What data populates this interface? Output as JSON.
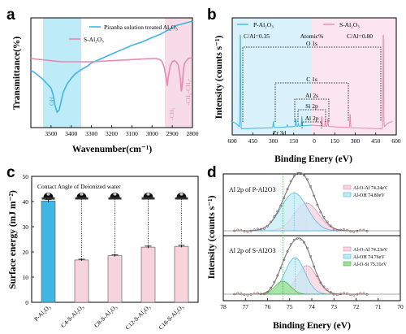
{
  "panels": {
    "a": "a",
    "b": "b",
    "c": "c",
    "d": "d"
  },
  "colors": {
    "blue": "#3fb6e3",
    "pink": "#e58ab0",
    "blue_band": "#bdebf7",
    "pink_band": "#f7dbe6",
    "bar_blue": "#3fb6e3",
    "bar_pink": "#f7d3dd",
    "green": "#9be18f",
    "envelope": "#e4e4e4",
    "points": "#8a5a5a"
  },
  "chart_data": [
    {
      "type": "line",
      "panel": "a",
      "xlabel": "Wavenumber(cm⁻¹)",
      "ylabel": "Transmittance(%)",
      "xlim": [
        3600,
        2800
      ],
      "xticks": [
        "3500",
        "3400",
        "3300",
        "3200",
        "3100",
        "3000",
        "2900",
        "2800"
      ],
      "legend": [
        "Piranha solution treated Al₂O₃",
        "S-Al₂O₃"
      ],
      "annotations": [
        "OH",
        "-CH₃",
        "-CH₂-CH₂-"
      ],
      "series": [
        {
          "name": "Piranha solution treated Al₂O₃",
          "x": [
            3600,
            3580,
            3560,
            3540,
            3520,
            3500,
            3490,
            3480,
            3470,
            3460,
            3450,
            3440,
            3420,
            3400,
            3380,
            3350,
            3320,
            3300,
            3250,
            3200,
            3150,
            3100,
            3050,
            3000,
            2960,
            2940,
            2920,
            2900,
            2880,
            2860,
            2840,
            2820,
            2800
          ],
          "y": [
            0.52,
            0.5,
            0.47,
            0.44,
            0.4,
            0.36,
            0.3,
            0.2,
            0.14,
            0.16,
            0.24,
            0.32,
            0.4,
            0.45,
            0.49,
            0.53,
            0.56,
            0.59,
            0.63,
            0.67,
            0.71,
            0.75,
            0.78,
            0.82,
            0.85,
            0.87,
            0.89,
            0.91,
            0.93,
            0.94,
            0.95,
            0.96,
            0.97
          ]
        },
        {
          "name": "S-Al₂O₃",
          "x": [
            3600,
            3550,
            3500,
            3450,
            3400,
            3350,
            3300,
            3200,
            3100,
            3000,
            2980,
            2960,
            2950,
            2940,
            2930,
            2925,
            2920,
            2910,
            2900,
            2890,
            2880,
            2870,
            2860,
            2855,
            2850,
            2845,
            2840,
            2830,
            2820,
            2800
          ],
          "y": [
            0.63,
            0.62,
            0.61,
            0.6,
            0.6,
            0.6,
            0.6,
            0.61,
            0.62,
            0.63,
            0.63,
            0.62,
            0.6,
            0.55,
            0.45,
            0.38,
            0.46,
            0.56,
            0.6,
            0.61,
            0.6,
            0.57,
            0.45,
            0.33,
            0.4,
            0.52,
            0.58,
            0.61,
            0.63,
            0.64
          ]
        }
      ]
    },
    {
      "type": "line",
      "panel": "b",
      "xlabel": "Binding Enery (eV)",
      "ylabel": "Intensity (counts s⁻¹)",
      "xticks": [
        "600",
        "450",
        "300",
        "150",
        "0",
        "150",
        "300",
        "450",
        "600"
      ],
      "legend": [
        "P-Al₂O₃",
        "S-Al₂O₃"
      ],
      "table": {
        "header": "Atomic%",
        "left": "C/Al=0.35",
        "right": "C/Al=0.80"
      },
      "peak_labels": [
        "O 1s",
        "C 1s",
        "Al 2s",
        "Si 2p",
        "Al 2p",
        "Zr 3d"
      ]
    },
    {
      "type": "bar",
      "panel": "c",
      "title": "Contact Angle of Deionized water",
      "ylabel": "Surface energy (mJ m⁻²)",
      "ylim": [
        0,
        50
      ],
      "yticks": [
        "0",
        "10",
        "20",
        "30",
        "40",
        "50"
      ],
      "categories": [
        "P-Al₂O₃",
        "C4-S-Al₂O₃",
        "C8-S-Al₂O₃",
        "C12-S-Al₂O₃",
        "C18-S-Al₂O₃"
      ],
      "values": [
        40.2,
        16.8,
        18.5,
        21.9,
        22.2
      ],
      "errors": [
        0.6,
        0.3,
        0.3,
        0.4,
        0.4
      ]
    },
    {
      "type": "line",
      "panel": "d",
      "xlabel": "Binding Enery (eV)",
      "ylabel": "Intensity (counts s⁻¹)",
      "xlim": [
        78,
        70
      ],
      "xticks": [
        "78",
        "77",
        "76",
        "75",
        "74",
        "73",
        "72",
        "71",
        "70"
      ],
      "subplots": [
        {
          "title": "Al 2p of P-Al2O3",
          "legend": [
            "Al-O-Al 74.24eV",
            "Al-OH    74.80eV"
          ],
          "peaks": [
            {
              "name": "Al-O-Al",
              "center": 74.24,
              "height": 0.55,
              "sigma": 0.55
            },
            {
              "name": "Al-OH",
              "center": 74.8,
              "height": 0.75,
              "sigma": 0.6
            }
          ]
        },
        {
          "title": "Al 2p of S-Al2O3",
          "legend": [
            "Al-O-Al 74.23eV",
            "Al-OH    74.76eV",
            "Al-O-Si  75.31eV"
          ],
          "peaks": [
            {
              "name": "Al-O-Al",
              "center": 74.23,
              "height": 0.55,
              "sigma": 0.45
            },
            {
              "name": "Al-OH",
              "center": 74.76,
              "height": 0.7,
              "sigma": 0.45
            },
            {
              "name": "Al-O-Si",
              "center": 75.31,
              "height": 0.25,
              "sigma": 0.35
            }
          ]
        }
      ]
    }
  ]
}
